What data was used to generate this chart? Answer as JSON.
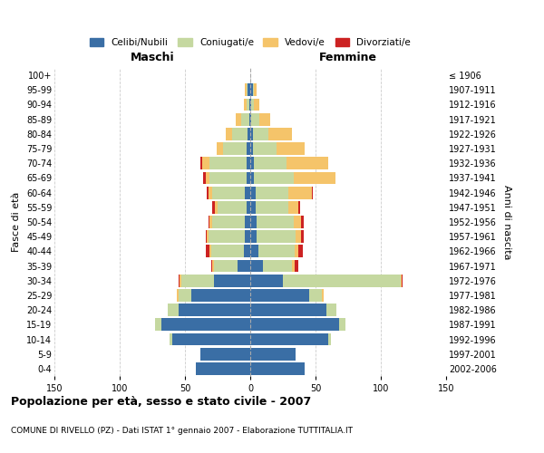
{
  "age_groups": [
    "0-4",
    "5-9",
    "10-14",
    "15-19",
    "20-24",
    "25-29",
    "30-34",
    "35-39",
    "40-44",
    "45-49",
    "50-54",
    "55-59",
    "60-64",
    "65-69",
    "70-74",
    "75-79",
    "80-84",
    "85-89",
    "90-94",
    "95-99",
    "100+"
  ],
  "birth_years": [
    "2002-2006",
    "1997-2001",
    "1992-1996",
    "1987-1991",
    "1982-1986",
    "1977-1981",
    "1972-1976",
    "1967-1971",
    "1962-1966",
    "1957-1961",
    "1952-1956",
    "1947-1951",
    "1942-1946",
    "1937-1941",
    "1932-1936",
    "1927-1931",
    "1922-1926",
    "1917-1921",
    "1912-1916",
    "1907-1911",
    "≤ 1906"
  ],
  "male": {
    "celibi": [
      42,
      38,
      60,
      68,
      55,
      45,
      28,
      10,
      5,
      4,
      4,
      3,
      4,
      3,
      3,
      3,
      2,
      1,
      1,
      2,
      0
    ],
    "coniugati": [
      0,
      0,
      2,
      5,
      8,
      10,
      25,
      18,
      25,
      28,
      25,
      22,
      25,
      28,
      28,
      18,
      12,
      6,
      2,
      1,
      0
    ],
    "vedovi": [
      0,
      0,
      0,
      0,
      0,
      1,
      1,
      1,
      1,
      1,
      2,
      2,
      3,
      3,
      6,
      5,
      5,
      4,
      2,
      1,
      0
    ],
    "divorziati": [
      0,
      0,
      0,
      0,
      0,
      0,
      1,
      1,
      3,
      1,
      1,
      2,
      1,
      2,
      1,
      0,
      0,
      0,
      0,
      0,
      0
    ]
  },
  "female": {
    "nubili": [
      42,
      35,
      60,
      68,
      58,
      45,
      25,
      10,
      6,
      5,
      5,
      4,
      4,
      3,
      3,
      2,
      2,
      1,
      1,
      2,
      0
    ],
    "coniugate": [
      0,
      0,
      2,
      5,
      8,
      10,
      90,
      22,
      28,
      30,
      28,
      25,
      25,
      30,
      25,
      18,
      12,
      6,
      2,
      1,
      0
    ],
    "vedove": [
      0,
      0,
      0,
      0,
      0,
      1,
      1,
      2,
      3,
      4,
      6,
      8,
      18,
      32,
      32,
      22,
      18,
      8,
      4,
      2,
      0
    ],
    "divorziate": [
      0,
      0,
      0,
      0,
      0,
      0,
      1,
      3,
      3,
      2,
      2,
      1,
      1,
      0,
      0,
      0,
      0,
      0,
      0,
      0,
      0
    ]
  },
  "colors": {
    "celibi": "#3a6ea5",
    "coniugati": "#c5d8a0",
    "vedovi": "#f5c46a",
    "divorziati": "#cc2222"
  },
  "legend_labels": [
    "Celibi/Nubili",
    "Coniugati/e",
    "Vedovi/e",
    "Divorziati/e"
  ],
  "title": "Popolazione per età, sesso e stato civile - 2007",
  "subtitle": "COMUNE DI RIVELLO (PZ) - Dati ISTAT 1° gennaio 2007 - Elaborazione TUTTITALIA.IT",
  "xlabel_left": "Maschi",
  "xlabel_right": "Femmine",
  "ylabel_left": "Fasce di età",
  "ylabel_right": "Anni di nascita",
  "xlim": 150,
  "xticks": [
    -150,
    -100,
    -50,
    0,
    50,
    100,
    150
  ],
  "xtick_labels": [
    "150",
    "100",
    "50",
    "0",
    "50",
    "100",
    "150"
  ]
}
